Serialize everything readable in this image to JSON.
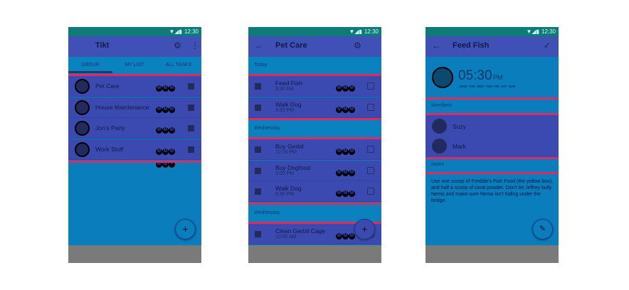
{
  "status": {
    "time": "12:30"
  },
  "screen1": {
    "title": "Tikt",
    "tabs": [
      "GROUP",
      "MY LIST",
      "ALL TASKS"
    ],
    "groups": [
      "Pet Care",
      "House Maintenance",
      "Jon's Party",
      "Work Stuff"
    ],
    "avatars": [
      "M",
      "M",
      "M",
      "M",
      "M",
      "+"
    ],
    "fab": "+"
  },
  "screen2": {
    "title": "Pet Care",
    "sections": [
      {
        "header": "Today",
        "tasks": [
          {
            "name": "Feed Fish",
            "time": "9:30 AM"
          },
          {
            "name": "Walk Dog",
            "time": "3:30 PM"
          }
        ]
      },
      {
        "header": "Wednesday",
        "tasks": [
          {
            "name": "Buy Gerbil",
            "time": "12:00 PM"
          },
          {
            "name": "Buy Dogfood",
            "time": "3:00 PM"
          },
          {
            "name": "Walk Dog",
            "time": "6:30 PM"
          }
        ]
      },
      {
        "header": "Wednesday",
        "tasks": [
          {
            "name": "Clean Gerbil Cage",
            "time": "10:00 AM"
          }
        ]
      }
    ],
    "fab": "+"
  },
  "screen3": {
    "title": "Feed Fish",
    "time": "05:30",
    "ampm": "PM",
    "days": [
      "MON",
      "TUE",
      "WED",
      "THU",
      "FRI",
      "SAT",
      "SUN"
    ],
    "members_label": "Members",
    "members": [
      "Suzy",
      "Mark"
    ],
    "notes_label": "Notes",
    "notes": "Use one scoop of Freddie's Fish Food (the yellow box), and half a scoop of coral powder. Don't let Jeffrey bully Nemo and make sure Nemo isn't hiding under the bridge."
  },
  "colors": {
    "primary": "#3f51b5",
    "blue": "#0a7dbd",
    "accent": "#e02a62",
    "status": "#0e7b78"
  }
}
